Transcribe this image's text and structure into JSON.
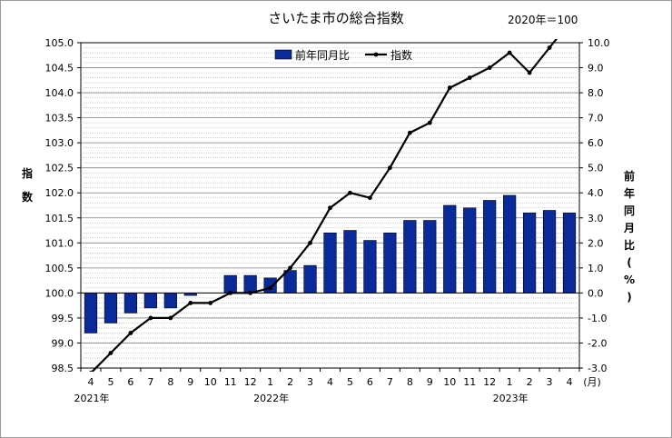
{
  "chart_data": {
    "type": "bar+line",
    "title": "さいたま市の総合指数",
    "base_note": "2020年＝100",
    "ylabel_left": "指数",
    "ylabel_right": "前年同月比(%)",
    "xunit": "(月)",
    "left_axis": {
      "min": 98.5,
      "max": 105.0,
      "step": 0.5,
      "ticks": [
        "98.5",
        "99.0",
        "99.5",
        "100.0",
        "100.5",
        "101.0",
        "101.5",
        "102.0",
        "102.5",
        "103.0",
        "103.5",
        "104.0",
        "104.5",
        "105.0"
      ]
    },
    "right_axis": {
      "min": -3.0,
      "max": 10.0,
      "step": 1.0,
      "ticks": [
        "-3.0",
        "-2.0",
        "-1.0",
        "0.0",
        "1.0",
        "2.0",
        "3.0",
        "4.0",
        "5.0",
        "6.0",
        "7.0",
        "8.0",
        "9.0",
        "10.0"
      ]
    },
    "categories": [
      "4",
      "5",
      "6",
      "7",
      "8",
      "9",
      "10",
      "11",
      "12",
      "1",
      "2",
      "3",
      "4",
      "5",
      "6",
      "7",
      "8",
      "9",
      "10",
      "11",
      "12",
      "1",
      "2",
      "3",
      "4"
    ],
    "year_labels": [
      {
        "label": "2021年",
        "index": 0
      },
      {
        "label": "2022年",
        "index": 9
      },
      {
        "label": "2023年",
        "index": 21
      }
    ],
    "series": [
      {
        "name": "前年同月比",
        "type": "bar",
        "axis": "right",
        "color": "#0a2a9a",
        "values": [
          -1.6,
          -1.2,
          -0.8,
          -0.6,
          -0.6,
          -0.1,
          0.0,
          0.7,
          0.7,
          0.6,
          0.9,
          1.1,
          2.4,
          2.5,
          2.1,
          2.4,
          2.9,
          2.9,
          3.5,
          3.4,
          3.7,
          3.9,
          3.2,
          3.3,
          3.2
        ]
      },
      {
        "name": "指数",
        "type": "line",
        "axis": "left",
        "color": "#000000",
        "values": [
          98.4,
          98.8,
          99.2,
          99.5,
          99.5,
          99.8,
          99.8,
          100.0,
          100.0,
          100.1,
          100.5,
          101.0,
          101.7,
          102.0,
          101.9,
          102.5,
          103.2,
          103.4,
          104.1,
          104.3,
          104.5,
          104.8,
          104.4,
          104.9,
          105.4
        ]
      }
    ],
    "legend_position": "top-center",
    "grid": true
  }
}
